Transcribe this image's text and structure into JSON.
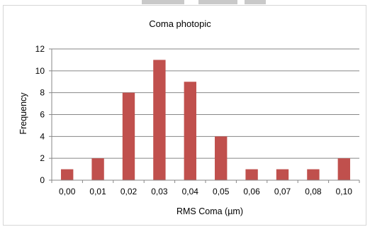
{
  "chart_data": {
    "type": "bar",
    "title": "Coma photopic",
    "xlabel": "RMS Coma (µm)",
    "ylabel": "Frequency",
    "categories": [
      "0,00",
      "0,01",
      "0,02",
      "0,03",
      "0,04",
      "0,05",
      "0,06",
      "0,07",
      "0,08",
      "0,10"
    ],
    "values": [
      1,
      2,
      8,
      11,
      9,
      4,
      1,
      1,
      1,
      2
    ],
    "ylim": [
      0,
      12
    ],
    "yticks": [
      "0",
      "2",
      "4",
      "6",
      "8",
      "10",
      "12"
    ],
    "grid": true,
    "legend": "none",
    "bar_color": "#c0504d",
    "grid_color": "#878787"
  }
}
